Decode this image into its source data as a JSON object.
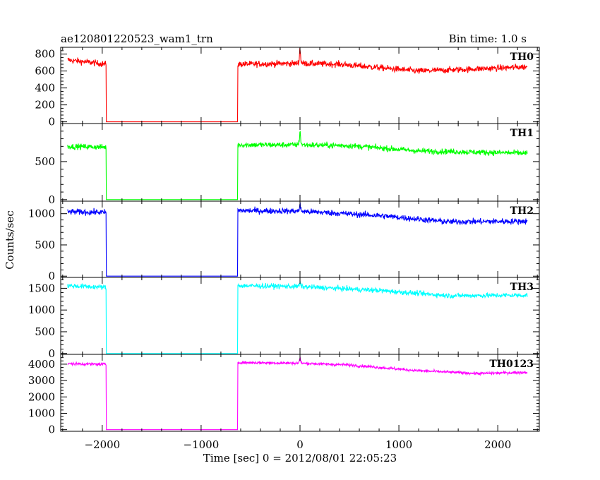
{
  "chart_data": {
    "type": "line",
    "title": "ae120801220523_wam1_trn",
    "subtitle": "Bin time: 1.0 s",
    "xlabel": "Time [sec] 0 = 2012/08/01 22:05:23",
    "ylabel": "Counts/sec",
    "xlim": [
      -2420,
      2420
    ],
    "xticks": [
      -2000,
      -1000,
      0,
      1000,
      2000
    ],
    "x_tick_labels": [
      "−2000",
      "−1000",
      "0",
      "1000",
      "2000"
    ],
    "grid": false,
    "data_x_range": [
      -2350,
      2300
    ],
    "gap": [
      -1960,
      -630
    ],
    "flare_time": 0,
    "panels": [
      {
        "name": "TH0",
        "color": "#ff0000",
        "ylim": [
          -20,
          880
        ],
        "yticks": [
          0,
          200,
          400,
          600,
          800
        ],
        "y_tick_labels": [
          "0",
          "200",
          "400",
          "600",
          "800"
        ],
        "amplitude": 35,
        "flare_peak": 220,
        "trend": [
          [
            -2350,
            730
          ],
          [
            -1960,
            680
          ],
          [
            -630,
            680
          ],
          [
            0,
            690
          ],
          [
            400,
            680
          ],
          [
            1200,
            600
          ],
          [
            1700,
            620
          ],
          [
            2300,
            650
          ]
        ]
      },
      {
        "name": "TH1",
        "color": "#00ff00",
        "ylim": [
          -20,
          1000
        ],
        "yticks": [
          0,
          500
        ],
        "y_tick_labels": [
          "0",
          "500"
        ],
        "amplitude": 35,
        "flare_peak": 230,
        "trend": [
          [
            -2350,
            700
          ],
          [
            -1960,
            690
          ],
          [
            -630,
            720
          ],
          [
            0,
            720
          ],
          [
            500,
            710
          ],
          [
            1200,
            640
          ],
          [
            2300,
            610
          ]
        ]
      },
      {
        "name": "TH2",
        "color": "#0000ff",
        "ylim": [
          -20,
          1200
        ],
        "yticks": [
          0,
          500,
          1000
        ],
        "y_tick_labels": [
          "0",
          "500",
          "1000"
        ],
        "amplitude": 45,
        "flare_peak": 120,
        "trend": [
          [
            -2350,
            1030
          ],
          [
            -1960,
            1020
          ],
          [
            -630,
            1050
          ],
          [
            0,
            1040
          ],
          [
            800,
            970
          ],
          [
            1500,
            870
          ],
          [
            2300,
            880
          ]
        ]
      },
      {
        "name": "TH3",
        "color": "#00ffff",
        "ylim": [
          -20,
          1750
        ],
        "yticks": [
          0,
          500,
          1000,
          1500
        ],
        "y_tick_labels": [
          "0",
          "500",
          "1000",
          "1500"
        ],
        "amplitude": 55,
        "flare_peak": 100,
        "trend": [
          [
            -2350,
            1560
          ],
          [
            -1960,
            1520
          ],
          [
            -630,
            1560
          ],
          [
            0,
            1540
          ],
          [
            800,
            1450
          ],
          [
            1500,
            1330
          ],
          [
            2300,
            1340
          ]
        ]
      },
      {
        "name": "TH0123",
        "color": "#ff00ff",
        "ylim": [
          -100,
          4600
        ],
        "yticks": [
          0,
          1000,
          2000,
          3000,
          4000
        ],
        "y_tick_labels": [
          "0",
          "1000",
          "2000",
          "3000",
          "4000"
        ],
        "amplitude": 80,
        "flare_peak": 400,
        "trend": [
          [
            -2350,
            4030
          ],
          [
            -1960,
            3990
          ],
          [
            -630,
            4100
          ],
          [
            0,
            4060
          ],
          [
            500,
            3950
          ],
          [
            1200,
            3600
          ],
          [
            1800,
            3430
          ],
          [
            2300,
            3500
          ]
        ]
      }
    ]
  }
}
